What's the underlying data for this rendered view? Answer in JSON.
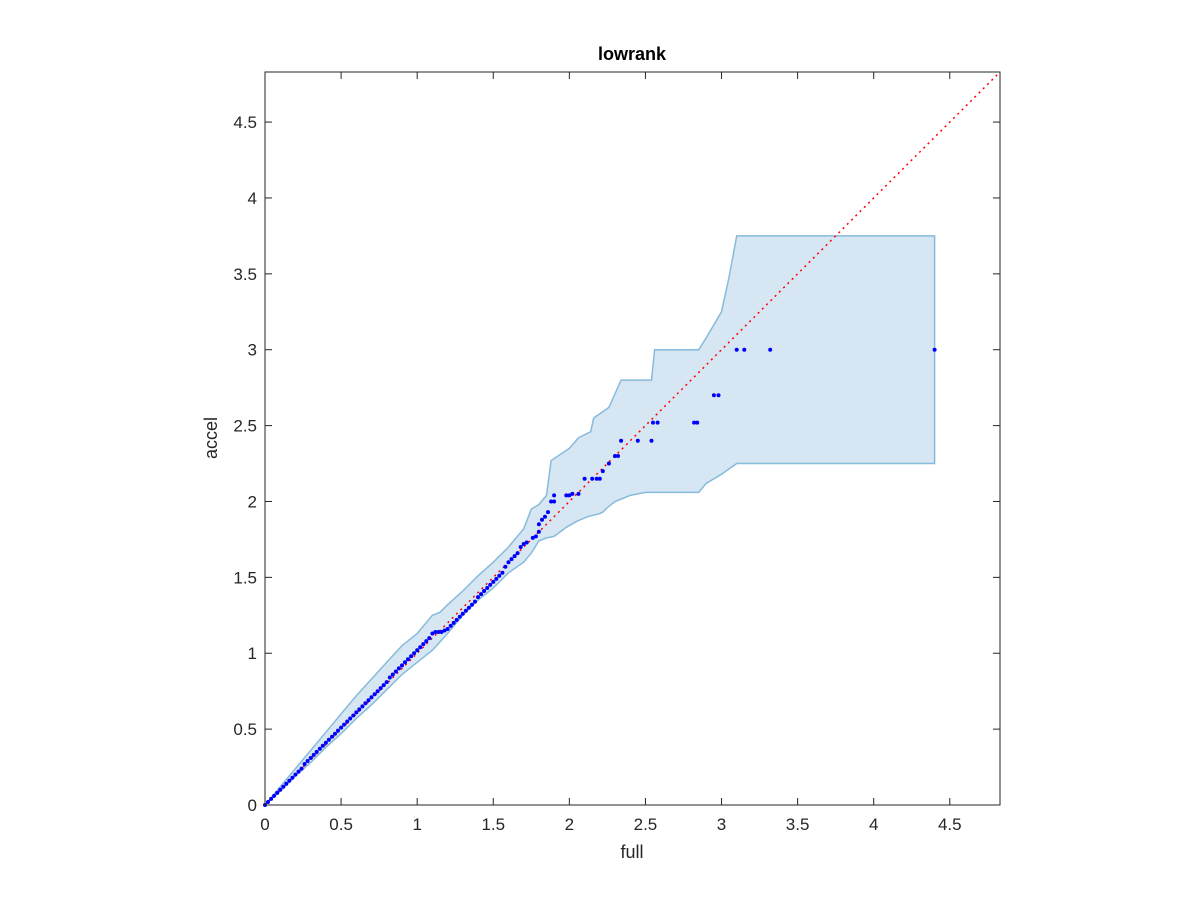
{
  "chart_data": {
    "type": "scatter",
    "title": "lowrank",
    "xlabel": "full",
    "ylabel": "accel",
    "xlim": [
      0,
      4.83
    ],
    "ylim": [
      0,
      4.83
    ],
    "xticks": [
      0,
      0.5,
      1,
      1.5,
      2,
      2.5,
      3,
      3.5,
      4,
      4.5
    ],
    "yticks": [
      0,
      0.5,
      1,
      1.5,
      2,
      2.5,
      3,
      3.5,
      4,
      4.5
    ],
    "xtick_labels": [
      "0",
      "0.5",
      "1",
      "1.5",
      "2",
      "2.5",
      "3",
      "3.5",
      "4",
      "4.5"
    ],
    "ytick_labels": [
      "0",
      "0.5",
      "1",
      "1.5",
      "2",
      "2.5",
      "3",
      "3.5",
      "4",
      "4.5"
    ],
    "grid": false,
    "colors": {
      "points": "#0000ff",
      "reference_line": "#ff0000",
      "band_fill": "#d6e6f3",
      "band_edge": "#87bbdb",
      "axes": "#262626"
    },
    "reference_line": {
      "x": [
        0,
        4.83
      ],
      "y": [
        0,
        4.83
      ],
      "style": "dotted"
    },
    "band": {
      "upper": [
        [
          0,
          0
        ],
        [
          0.1,
          0.12
        ],
        [
          0.2,
          0.24
        ],
        [
          0.3,
          0.36
        ],
        [
          0.4,
          0.48
        ],
        [
          0.5,
          0.6
        ],
        [
          0.6,
          0.72
        ],
        [
          0.7,
          0.83
        ],
        [
          0.8,
          0.94
        ],
        [
          0.9,
          1.05
        ],
        [
          1.0,
          1.13
        ],
        [
          1.1,
          1.25
        ],
        [
          1.15,
          1.27
        ],
        [
          1.2,
          1.32
        ],
        [
          1.3,
          1.41
        ],
        [
          1.4,
          1.51
        ],
        [
          1.5,
          1.6
        ],
        [
          1.6,
          1.7
        ],
        [
          1.7,
          1.82
        ],
        [
          1.75,
          1.95
        ],
        [
          1.8,
          1.98
        ],
        [
          1.85,
          2.04
        ],
        [
          1.88,
          2.27
        ],
        [
          2.0,
          2.35
        ],
        [
          2.06,
          2.42
        ],
        [
          2.14,
          2.46
        ],
        [
          2.16,
          2.55
        ],
        [
          2.26,
          2.62
        ],
        [
          2.34,
          2.8
        ],
        [
          2.54,
          2.8
        ],
        [
          2.56,
          3.0
        ],
        [
          2.85,
          3.0
        ],
        [
          2.9,
          3.08
        ],
        [
          3.0,
          3.25
        ],
        [
          3.05,
          3.48
        ],
        [
          3.1,
          3.75
        ],
        [
          4.4,
          3.75
        ]
      ],
      "lower": [
        [
          4.4,
          2.25
        ],
        [
          3.1,
          2.25
        ],
        [
          3.0,
          2.18
        ],
        [
          2.9,
          2.12
        ],
        [
          2.85,
          2.06
        ],
        [
          2.5,
          2.06
        ],
        [
          2.4,
          2.04
        ],
        [
          2.3,
          2.0
        ],
        [
          2.25,
          1.96
        ],
        [
          2.22,
          1.93
        ],
        [
          2.2,
          1.92
        ],
        [
          2.12,
          1.9
        ],
        [
          2.05,
          1.87
        ],
        [
          1.98,
          1.83
        ],
        [
          1.9,
          1.77
        ],
        [
          1.85,
          1.76
        ],
        [
          1.8,
          1.74
        ],
        [
          1.75,
          1.66
        ],
        [
          1.7,
          1.6
        ],
        [
          1.6,
          1.53
        ],
        [
          1.5,
          1.43
        ],
        [
          1.4,
          1.35
        ],
        [
          1.3,
          1.25
        ],
        [
          1.2,
          1.13
        ],
        [
          1.1,
          1.02
        ],
        [
          1.0,
          0.94
        ],
        [
          0.9,
          0.86
        ],
        [
          0.8,
          0.76
        ],
        [
          0.7,
          0.66
        ],
        [
          0.6,
          0.57
        ],
        [
          0.5,
          0.47
        ],
        [
          0.4,
          0.38
        ],
        [
          0.3,
          0.28
        ],
        [
          0.2,
          0.19
        ],
        [
          0.1,
          0.09
        ],
        [
          0,
          0
        ]
      ]
    },
    "series": [
      {
        "points": [
          [
            0.0,
            0.0
          ],
          [
            0.02,
            0.02
          ],
          [
            0.04,
            0.04
          ],
          [
            0.06,
            0.06
          ],
          [
            0.08,
            0.08
          ],
          [
            0.1,
            0.1
          ],
          [
            0.12,
            0.12
          ],
          [
            0.14,
            0.14
          ],
          [
            0.16,
            0.16
          ],
          [
            0.18,
            0.18
          ],
          [
            0.2,
            0.2
          ],
          [
            0.22,
            0.22
          ],
          [
            0.24,
            0.24
          ],
          [
            0.26,
            0.27
          ],
          [
            0.28,
            0.29
          ],
          [
            0.3,
            0.31
          ],
          [
            0.32,
            0.33
          ],
          [
            0.34,
            0.35
          ],
          [
            0.36,
            0.37
          ],
          [
            0.38,
            0.39
          ],
          [
            0.4,
            0.41
          ],
          [
            0.42,
            0.43
          ],
          [
            0.44,
            0.45
          ],
          [
            0.46,
            0.47
          ],
          [
            0.48,
            0.49
          ],
          [
            0.5,
            0.51
          ],
          [
            0.52,
            0.53
          ],
          [
            0.54,
            0.55
          ],
          [
            0.56,
            0.57
          ],
          [
            0.58,
            0.59
          ],
          [
            0.6,
            0.61
          ],
          [
            0.62,
            0.63
          ],
          [
            0.64,
            0.65
          ],
          [
            0.66,
            0.67
          ],
          [
            0.68,
            0.69
          ],
          [
            0.7,
            0.71
          ],
          [
            0.72,
            0.73
          ],
          [
            0.74,
            0.75
          ],
          [
            0.76,
            0.77
          ],
          [
            0.78,
            0.79
          ],
          [
            0.8,
            0.81
          ],
          [
            0.82,
            0.84
          ],
          [
            0.84,
            0.86
          ],
          [
            0.86,
            0.88
          ],
          [
            0.88,
            0.9
          ],
          [
            0.9,
            0.92
          ],
          [
            0.92,
            0.94
          ],
          [
            0.94,
            0.96
          ],
          [
            0.96,
            0.98
          ],
          [
            0.98,
            1.0
          ],
          [
            1.0,
            1.02
          ],
          [
            1.02,
            1.04
          ],
          [
            1.04,
            1.06
          ],
          [
            1.06,
            1.08
          ],
          [
            1.08,
            1.1
          ],
          [
            1.1,
            1.13
          ],
          [
            1.12,
            1.14
          ],
          [
            1.14,
            1.14
          ],
          [
            1.16,
            1.14
          ],
          [
            1.18,
            1.15
          ],
          [
            1.2,
            1.16
          ],
          [
            1.22,
            1.18
          ],
          [
            1.24,
            1.2
          ],
          [
            1.26,
            1.22
          ],
          [
            1.28,
            1.24
          ],
          [
            1.3,
            1.26
          ],
          [
            1.32,
            1.28
          ],
          [
            1.34,
            1.3
          ],
          [
            1.36,
            1.32
          ],
          [
            1.38,
            1.34
          ],
          [
            1.4,
            1.37
          ],
          [
            1.42,
            1.39
          ],
          [
            1.44,
            1.41
          ],
          [
            1.46,
            1.43
          ],
          [
            1.48,
            1.45
          ],
          [
            1.5,
            1.47
          ],
          [
            1.52,
            1.49
          ],
          [
            1.54,
            1.51
          ],
          [
            1.56,
            1.53
          ],
          [
            1.58,
            1.57
          ],
          [
            1.6,
            1.6
          ],
          [
            1.62,
            1.62
          ],
          [
            1.64,
            1.64
          ],
          [
            1.66,
            1.66
          ],
          [
            1.68,
            1.7
          ],
          [
            1.7,
            1.72
          ],
          [
            1.72,
            1.73
          ],
          [
            1.76,
            1.76
          ],
          [
            1.78,
            1.77
          ],
          [
            1.8,
            1.8
          ],
          [
            1.8,
            1.85
          ],
          [
            1.82,
            1.88
          ],
          [
            1.84,
            1.9
          ],
          [
            1.86,
            1.93
          ],
          [
            1.88,
            2.0
          ],
          [
            1.9,
            2.0
          ],
          [
            1.9,
            2.04
          ],
          [
            1.98,
            2.04
          ],
          [
            2.0,
            2.04
          ],
          [
            2.02,
            2.05
          ],
          [
            2.06,
            2.05
          ],
          [
            2.1,
            2.15
          ],
          [
            2.15,
            2.15
          ],
          [
            2.18,
            2.15
          ],
          [
            2.2,
            2.15
          ],
          [
            2.22,
            2.2
          ],
          [
            2.26,
            2.25
          ],
          [
            2.3,
            2.3
          ],
          [
            2.32,
            2.3
          ],
          [
            2.34,
            2.4
          ],
          [
            2.45,
            2.4
          ],
          [
            2.54,
            2.4
          ],
          [
            2.55,
            2.52
          ],
          [
            2.58,
            2.52
          ],
          [
            2.82,
            2.52
          ],
          [
            2.84,
            2.52
          ],
          [
            2.95,
            2.7
          ],
          [
            2.98,
            2.7
          ],
          [
            3.1,
            3.0
          ],
          [
            3.15,
            3.0
          ],
          [
            3.32,
            3.0
          ],
          [
            4.4,
            3.0
          ]
        ]
      }
    ]
  }
}
